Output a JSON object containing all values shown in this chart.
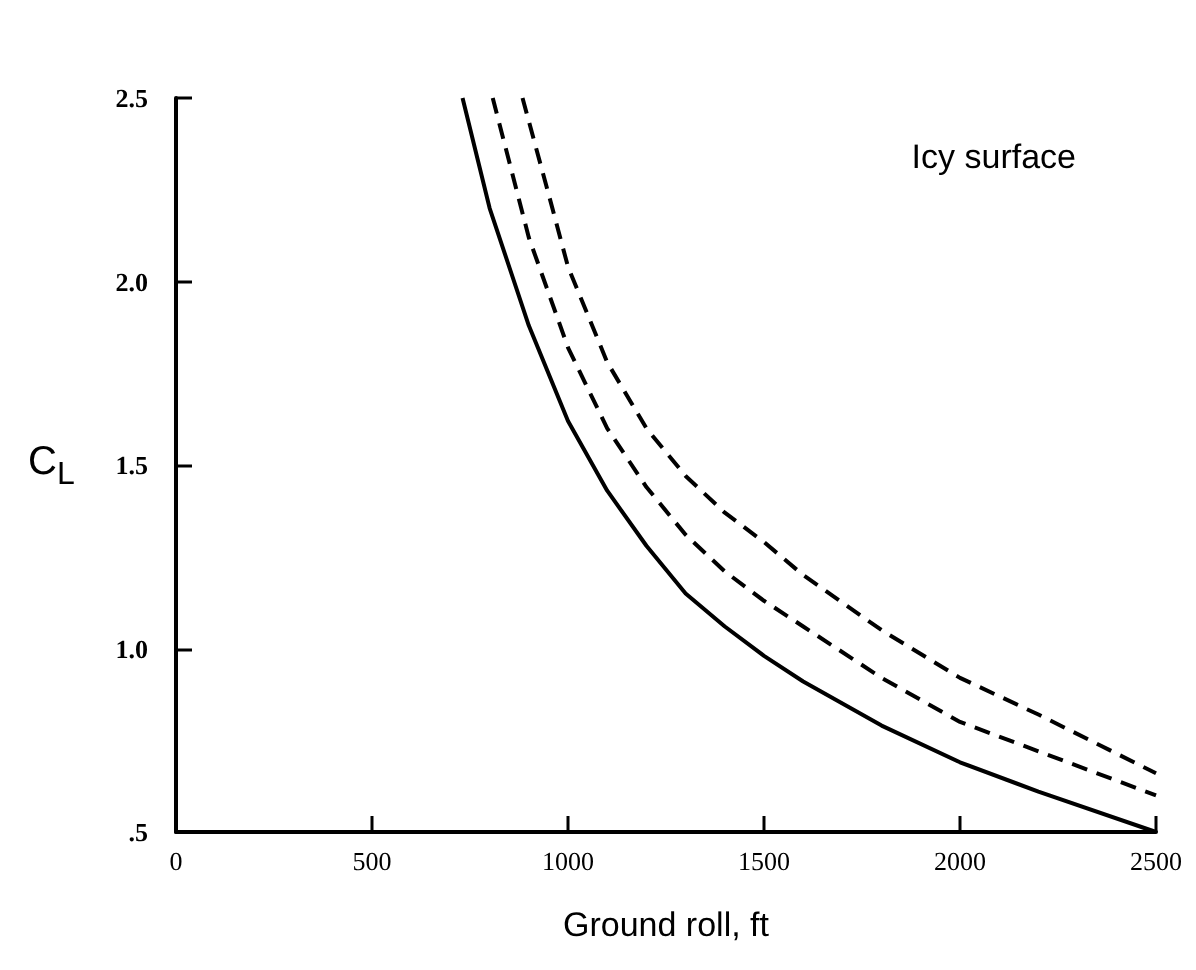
{
  "chart_data": {
    "type": "line",
    "xlabel": "Ground roll, ft",
    "ylabel": "C$_{L}$",
    "annotations": [
      "Icy surface"
    ],
    "xlim": [
      0,
      2500
    ],
    "xticks": [
      0,
      500,
      1000,
      1500,
      2000,
      2500
    ],
    "ylim": [
      0.5,
      2.5
    ],
    "yticks": [
      {
        "value": 0.5,
        "label": ".5"
      },
      {
        "value": 1,
        "label": "1.0"
      },
      {
        "value": 1.5,
        "label": "1.5"
      },
      {
        "value": 2,
        "label": "2.0"
      },
      {
        "value": 2.5,
        "label": "2.5"
      }
    ],
    "grid": false,
    "marker": "none",
    "series": [
      {
        "color": "#000000",
        "line_style": "solid",
        "x": [
          731,
          800,
          900,
          1000,
          1100,
          1200,
          1300,
          1400,
          1500,
          1600,
          1800,
          2000,
          2200,
          2500
        ],
        "values": [
          2.5,
          2.2,
          1.88,
          1.62,
          1.43,
          1.28,
          1.15,
          1.06,
          0.98,
          0.91,
          0.79,
          0.69,
          0.61,
          0.5
        ]
      },
      {
        "color": "#000000",
        "line_style": "dashed",
        "x": [
          808,
          900,
          1000,
          1100,
          1200,
          1300,
          1400,
          1500,
          1600,
          1800,
          2000,
          2200,
          2500
        ],
        "values": [
          2.5,
          2.12,
          1.82,
          1.6,
          1.44,
          1.31,
          1.21,
          1.13,
          1.06,
          0.92,
          0.8,
          0.72,
          0.6
        ]
      },
      {
        "color": "#000000",
        "line_style": "dashed",
        "x": [
          884,
          950,
          1000,
          1100,
          1200,
          1300,
          1400,
          1500,
          1600,
          1800,
          2000,
          2200,
          2500
        ],
        "values": [
          2.5,
          2.24,
          2.04,
          1.78,
          1.6,
          1.47,
          1.37,
          1.29,
          1.2,
          1.05,
          0.92,
          0.82,
          0.66
        ]
      }
    ]
  }
}
